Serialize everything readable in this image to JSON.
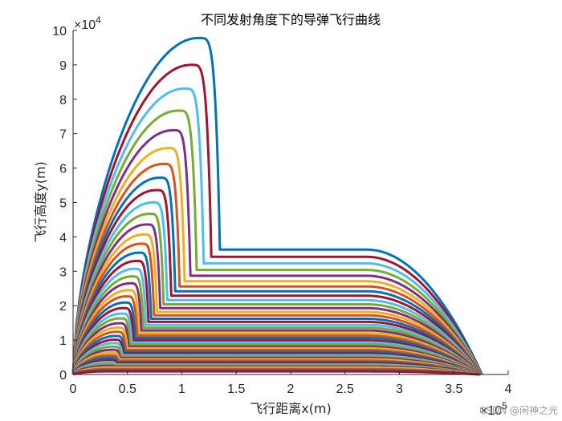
{
  "chart_data": {
    "type": "line",
    "title": "不同发射角度下的导弹飞行曲线",
    "xlabel": "飞行距离x(m)",
    "ylabel": "飞行高度y(m)",
    "xlim": [
      0,
      400000
    ],
    "ylim": [
      0,
      100000
    ],
    "x_ticks": [
      "0",
      "0.5",
      "1",
      "1.5",
      "2",
      "2.5",
      "3",
      "3.5",
      "4"
    ],
    "y_ticks": [
      "0",
      "1",
      "2",
      "3",
      "4",
      "5",
      "6",
      "7",
      "8",
      "9",
      "10"
    ],
    "x_multiplier": "×10",
    "x_multiplier_exp": "5",
    "y_multiplier": "×10",
    "y_multiplier_exp": "4",
    "grid": false,
    "legend": "none",
    "colors": [
      "#0072BD",
      "#A2142F",
      "#4DBEEE",
      "#77AC30",
      "#7E2F8E",
      "#EDB120",
      "#D95319"
    ],
    "series_peak_heights": [
      97800,
      90000,
      83100,
      76700,
      71000,
      65800,
      61200,
      57200,
      53600,
      50000,
      46700,
      43600,
      40700,
      38000,
      35400,
      33000,
      30700,
      28500,
      26500,
      24500,
      22700,
      20900,
      19300,
      17700,
      16300,
      14900,
      13600,
      12400,
      11200,
      10100,
      9100,
      8100,
      7200,
      6400,
      5600,
      4900,
      4200,
      3600,
      3000,
      2500,
      2000,
      1600,
      1200,
      900
    ],
    "series_cruise_heights": [
      36300,
      34200,
      32300,
      30400,
      28700,
      27100,
      25600,
      24200,
      22900,
      21600,
      20400,
      19300,
      18200,
      17200,
      16200,
      15300,
      14400,
      13600,
      12800,
      12000,
      11300,
      10600,
      9900,
      9300,
      8700,
      8100,
      7600,
      7100,
      6600,
      6100,
      5600,
      5200,
      4800,
      4400,
      4000,
      3600,
      3300,
      2900,
      2600,
      2300,
      2000,
      1600,
      1200,
      900
    ],
    "cruise_end_x": 270000,
    "impact_x": 376000
  },
  "watermark": "CSDN @闲神之光"
}
